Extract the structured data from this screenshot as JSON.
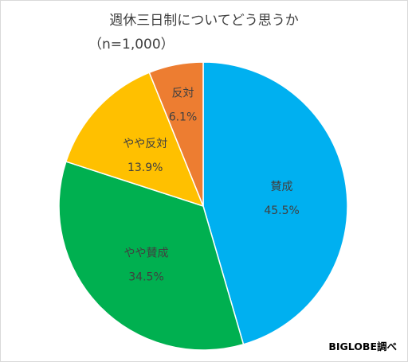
{
  "title": "週休三日制についてどう思うか",
  "subtitle": "（n=1,000）",
  "source": "BIGLOBE調べ",
  "chart_data": {
    "type": "pie",
    "start_angle_deg": 0,
    "direction": "clockwise",
    "slices": [
      {
        "label": "賛成",
        "value": 45.5,
        "value_label": "45.5%",
        "color": "#00b0f0"
      },
      {
        "label": "やや賛成",
        "value": 34.5,
        "value_label": "34.5%",
        "color": "#00b050"
      },
      {
        "label": "やや反対",
        "value": 13.9,
        "value_label": "13.9%",
        "color": "#ffc000"
      },
      {
        "label": "反対",
        "value": 6.1,
        "value_label": "6.1%",
        "color": "#ed7d31"
      }
    ]
  }
}
